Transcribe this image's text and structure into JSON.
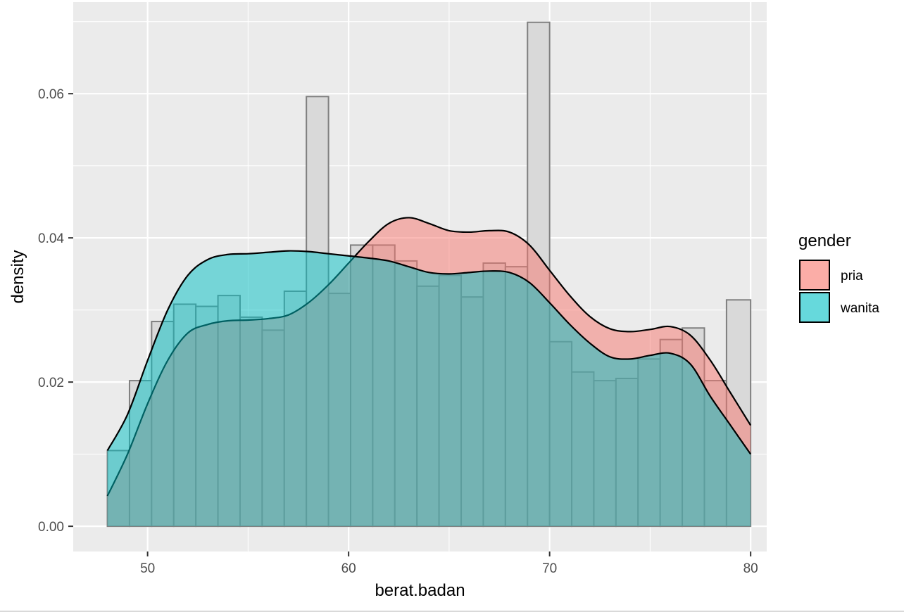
{
  "chart_data": {
    "type": "histogram+density",
    "xlabel": "berat.badan",
    "ylabel": "density",
    "xlim": [
      46.3,
      80.8
    ],
    "ylim": [
      -0.0035,
      0.0727
    ],
    "x_ticks": [
      50,
      60,
      70,
      80
    ],
    "x_tick_labels": [
      "50",
      "60",
      "70",
      "80"
    ],
    "y_ticks": [
      0.0,
      0.02,
      0.04,
      0.06
    ],
    "y_tick_labels": [
      "0.00",
      "0.02",
      "0.04",
      "0.06"
    ],
    "grid": true,
    "legend": {
      "title": "gender",
      "position": "right"
    },
    "histogram": {
      "fill": "#d9d9d9",
      "stroke": "#7f7f7f",
      "bin_edges": [
        48.0,
        49.1,
        50.2,
        51.3,
        52.4,
        53.5,
        54.6,
        55.7,
        56.8,
        57.9,
        59.0,
        60.1,
        61.2,
        62.3,
        63.4,
        64.5,
        65.6,
        66.7,
        67.8,
        68.9,
        70.0,
        71.1,
        72.2,
        73.3,
        74.4,
        75.5,
        76.6,
        77.7,
        78.8,
        80.0
      ],
      "density": [
        0.0105,
        0.0202,
        0.0284,
        0.0308,
        0.0305,
        0.032,
        0.029,
        0.0272,
        0.0326,
        0.0596,
        0.0323,
        0.039,
        0.039,
        0.0368,
        0.0333,
        0.0348,
        0.0318,
        0.0365,
        0.036,
        0.0699,
        0.0256,
        0.0214,
        0.0202,
        0.0205,
        0.0232,
        0.0259,
        0.0275,
        0.0202,
        0.0314
      ]
    },
    "series": [
      {
        "name": "pria",
        "color": "#f8766d",
        "x": [
          48,
          49,
          50,
          51,
          52,
          53,
          54,
          55,
          56,
          57,
          58,
          59,
          60,
          61,
          62,
          63,
          64,
          65,
          66,
          67,
          68,
          69,
          70,
          71,
          72,
          73,
          74,
          75,
          76,
          77,
          78,
          79,
          80
        ],
        "y": [
          0.0042,
          0.01,
          0.017,
          0.023,
          0.0268,
          0.028,
          0.0285,
          0.0286,
          0.0288,
          0.0293,
          0.031,
          0.0335,
          0.0365,
          0.0395,
          0.042,
          0.0428,
          0.042,
          0.041,
          0.0408,
          0.041,
          0.0408,
          0.039,
          0.0355,
          0.032,
          0.0291,
          0.0274,
          0.027,
          0.0273,
          0.0277,
          0.0265,
          0.023,
          0.0185,
          0.014
        ]
      },
      {
        "name": "wanita",
        "color": "#00bfc4",
        "x": [
          48,
          49,
          50,
          51,
          52,
          53,
          54,
          55,
          56,
          57,
          58,
          59,
          60,
          61,
          62,
          63,
          64,
          65,
          66,
          67,
          68,
          69,
          70,
          71,
          72,
          73,
          74,
          75,
          76,
          77,
          78,
          79,
          80
        ],
        "y": [
          0.0105,
          0.0155,
          0.023,
          0.03,
          0.0348,
          0.037,
          0.0377,
          0.0378,
          0.038,
          0.0382,
          0.0381,
          0.0378,
          0.0375,
          0.0372,
          0.0368,
          0.036,
          0.0352,
          0.035,
          0.0352,
          0.0354,
          0.0352,
          0.0338,
          0.031,
          0.028,
          0.0254,
          0.0235,
          0.0232,
          0.0237,
          0.024,
          0.0225,
          0.018,
          0.014,
          0.01
        ]
      }
    ]
  }
}
